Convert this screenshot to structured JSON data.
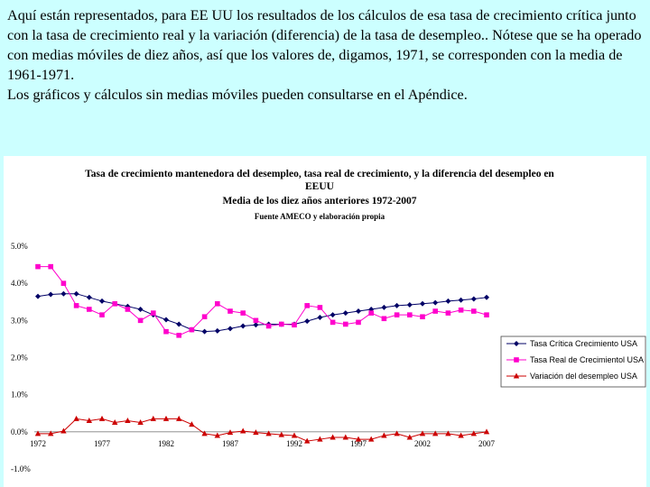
{
  "intro": {
    "line1": "Aquí están representados, para EE UU los resultados de los cálculos de esa tasa de crecimiento crítica junto con la tasa de crecimiento real y la variación (diferencia) de la tasa de desempleo.. Nótese que se ha operado con medias móviles de diez años, así que los valores de, digamos, 1971, se corresponden con la media de 1961-1971.",
    "line2": "Los gráficos y cálculos sin medias móviles pueden consultarse en el Apéndice."
  },
  "chart_data": {
    "type": "line",
    "title_line1": "Tasa de crecimiento mantenedora del desempleo,  tasa real de crecimiento, y la diferencia del desempleo en",
    "title_line2": "EEUU",
    "title_line3": "Media de los diez años anteriores 1972-2007",
    "subtitle": "Fuente AMECO y elaboración propia",
    "ylim": [
      -1.0,
      5.0
    ],
    "yticks": [
      5.0,
      4.0,
      3.0,
      2.0,
      1.0,
      0.0,
      -1.0
    ],
    "ytick_labels": [
      "5.0%",
      "4.0%",
      "3.0%",
      "2.0%",
      "1.0%",
      "0.0%",
      "-1.0%"
    ],
    "xlim": [
      1972,
      2007
    ],
    "xtick_labels": [
      "1972",
      "1977",
      "1982",
      "1987",
      "1992",
      "1997",
      "2002",
      "2007"
    ],
    "x": [
      1972,
      1973,
      1974,
      1975,
      1976,
      1977,
      1978,
      1979,
      1980,
      1981,
      1982,
      1983,
      1984,
      1985,
      1986,
      1987,
      1988,
      1989,
      1990,
      1991,
      1992,
      1993,
      1994,
      1995,
      1996,
      1997,
      1998,
      1999,
      2000,
      2001,
      2002,
      2003,
      2004,
      2005,
      2006,
      2007
    ],
    "series": [
      {
        "name": "Tasa Crítica Crecimiento  USA",
        "color": "#000066",
        "marker": "diamond",
        "values": [
          3.65,
          3.7,
          3.72,
          3.72,
          3.62,
          3.52,
          3.45,
          3.38,
          3.3,
          3.15,
          3.02,
          2.9,
          2.75,
          2.7,
          2.72,
          2.78,
          2.85,
          2.88,
          2.9,
          2.9,
          2.9,
          2.98,
          3.08,
          3.15,
          3.2,
          3.25,
          3.3,
          3.35,
          3.4,
          3.42,
          3.45,
          3.48,
          3.52,
          3.55,
          3.58,
          3.62
        ]
      },
      {
        "name": "Tasa Real de Crecimientol USA",
        "color": "#ff00cc",
        "marker": "square",
        "values": [
          4.45,
          4.45,
          4.0,
          3.4,
          3.3,
          3.15,
          3.45,
          3.3,
          3.0,
          3.2,
          2.7,
          2.6,
          2.75,
          3.1,
          3.45,
          3.25,
          3.2,
          3.0,
          2.85,
          2.9,
          2.88,
          3.4,
          3.35,
          2.95,
          2.9,
          2.95,
          3.2,
          3.05,
          3.15,
          3.15,
          3.1,
          3.25,
          3.2,
          3.28,
          3.25,
          3.15
        ]
      },
      {
        "name": "Variación del desempleo  USA",
        "color": "#cc0000",
        "marker": "triangle",
        "values": [
          -0.05,
          -0.05,
          0.02,
          0.35,
          0.3,
          0.35,
          0.25,
          0.3,
          0.25,
          0.35,
          0.35,
          0.35,
          0.2,
          -0.05,
          -0.1,
          -0.02,
          0.02,
          -0.02,
          -0.05,
          -0.08,
          -0.1,
          -0.25,
          -0.2,
          -0.15,
          -0.15,
          -0.2,
          -0.2,
          -0.1,
          -0.05,
          -0.15,
          -0.05,
          -0.05,
          -0.05,
          -0.1,
          -0.05,
          0.0
        ]
      }
    ]
  }
}
